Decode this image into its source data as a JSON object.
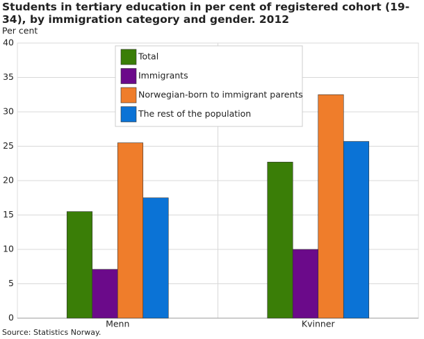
{
  "chart_data": {
    "type": "bar",
    "title": "Students in tertiary education in per cent of registered cohort (19-34), by immigration category and gender. 2012",
    "y_label": "Per cent",
    "source": "Source: Statistics Norway.",
    "categories": [
      "Menn",
      "Kvinner"
    ],
    "series": [
      {
        "name": "Total",
        "color": "#3a7e07",
        "values": [
          15.5,
          22.7
        ]
      },
      {
        "name": "Immigrants",
        "color": "#6b0a8a",
        "values": [
          7.1,
          10.0
        ]
      },
      {
        "name": "Norwegian-born to immigrant parents",
        "color": "#ef7d2b",
        "values": [
          25.5,
          32.5
        ]
      },
      {
        "name": "The rest of the population",
        "color": "#0b73d6",
        "values": [
          17.5,
          25.7
        ]
      }
    ],
    "ylim": [
      0,
      40
    ],
    "yticks": [
      0,
      5,
      10,
      15,
      20,
      25,
      30,
      35,
      40
    ],
    "grid": true,
    "legend": "top"
  }
}
